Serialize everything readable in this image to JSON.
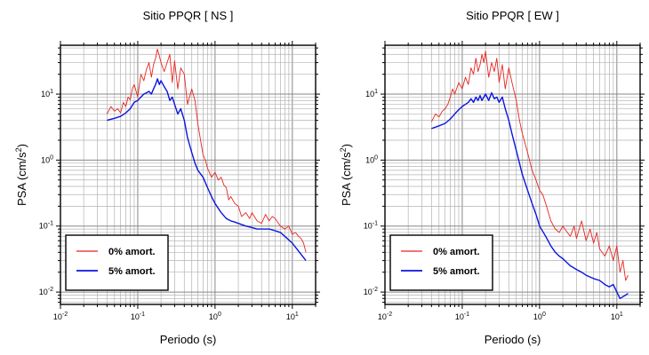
{
  "chart_data": [
    {
      "type": "line",
      "title": "Sitio PPQR [ NS ]",
      "xlabel": "Periodo (s)",
      "ylabel_main": "PSA (cm/s",
      "ylabel_sup": "2",
      "ylabel_end": ")",
      "xscale": "log",
      "yscale": "log",
      "xlim": [
        0.01,
        20
      ],
      "ylim": [
        0.0065,
        55
      ],
      "grid": true,
      "legend_position": "bottom-left",
      "x_ticks": [
        {
          "base": "10",
          "exp": "-2"
        },
        {
          "base": "10",
          "exp": "-1"
        },
        {
          "base": "10",
          "exp": "0"
        },
        {
          "base": "10",
          "exp": "1"
        }
      ],
      "y_ticks": [
        {
          "base": "10",
          "exp": "-2"
        },
        {
          "base": "10",
          "exp": "-1"
        },
        {
          "base": "10",
          "exp": "0"
        },
        {
          "base": "10",
          "exp": "1"
        }
      ],
      "series": [
        {
          "name": "0% amort.",
          "color": "#e8251f",
          "x": [
            0.04,
            0.045,
            0.05,
            0.055,
            0.06,
            0.065,
            0.07,
            0.075,
            0.08,
            0.085,
            0.09,
            0.1,
            0.11,
            0.12,
            0.13,
            0.14,
            0.15,
            0.16,
            0.17,
            0.18,
            0.19,
            0.2,
            0.22,
            0.24,
            0.26,
            0.28,
            0.3,
            0.33,
            0.36,
            0.4,
            0.44,
            0.5,
            0.55,
            0.6,
            0.65,
            0.7,
            0.75,
            0.8,
            0.9,
            1.0,
            1.1,
            1.2,
            1.3,
            1.4,
            1.5,
            1.6,
            1.8,
            2.0,
            2.2,
            2.5,
            2.8,
            3.0,
            3.5,
            4.0,
            4.5,
            5.0,
            5.5,
            6.0,
            7.0,
            8.0,
            9.0,
            10,
            11,
            12,
            13,
            14,
            15
          ],
          "y": [
            5,
            6.5,
            5.5,
            6,
            5.2,
            7.5,
            6.5,
            9,
            8.2,
            12,
            14,
            9,
            20,
            16,
            24,
            30,
            18,
            28,
            35,
            48,
            38,
            30,
            22,
            30,
            40,
            15,
            32,
            12,
            25,
            20,
            7,
            12,
            8,
            3.5,
            2,
            1.2,
            1.0,
            0.75,
            0.55,
            0.65,
            0.5,
            0.55,
            0.42,
            0.38,
            0.25,
            0.28,
            0.22,
            0.2,
            0.14,
            0.16,
            0.13,
            0.16,
            0.12,
            0.11,
            0.15,
            0.12,
            0.14,
            0.13,
            0.1,
            0.09,
            0.1,
            0.075,
            0.08,
            0.07,
            0.065,
            0.055,
            0.04
          ]
        },
        {
          "name": "5% amort.",
          "color": "#0a14e0",
          "x": [
            0.04,
            0.05,
            0.06,
            0.07,
            0.08,
            0.09,
            0.1,
            0.11,
            0.12,
            0.13,
            0.14,
            0.15,
            0.16,
            0.17,
            0.18,
            0.19,
            0.2,
            0.22,
            0.24,
            0.26,
            0.28,
            0.3,
            0.33,
            0.36,
            0.4,
            0.44,
            0.5,
            0.55,
            0.6,
            0.7,
            0.8,
            0.9,
            1.0,
            1.2,
            1.4,
            1.6,
            1.8,
            2.0,
            2.5,
            3.0,
            3.5,
            4.0,
            5.0,
            6.0,
            7.0,
            8.0,
            10,
            12,
            15
          ],
          "y": [
            4,
            4.3,
            4.6,
            5.2,
            6,
            7.5,
            8,
            9,
            10,
            10.5,
            11,
            10,
            12,
            14,
            17,
            14,
            16,
            13,
            11,
            8,
            9,
            7,
            5,
            6,
            4,
            2.2,
            1.3,
            0.9,
            0.7,
            0.55,
            0.38,
            0.28,
            0.22,
            0.16,
            0.13,
            0.12,
            0.115,
            0.11,
            0.1,
            0.095,
            0.09,
            0.09,
            0.09,
            0.085,
            0.08,
            0.07,
            0.055,
            0.042,
            0.03
          ]
        }
      ]
    },
    {
      "type": "line",
      "title": "Sitio PPQR [ EW ]",
      "xlabel": "Periodo (s)",
      "ylabel_main": "PSA (cm/s",
      "ylabel_sup": "2",
      "ylabel_end": ")",
      "xscale": "log",
      "yscale": "log",
      "xlim": [
        0.01,
        20
      ],
      "ylim": [
        0.0065,
        55
      ],
      "grid": true,
      "legend_position": "bottom-left",
      "x_ticks": [
        {
          "base": "10",
          "exp": "-2"
        },
        {
          "base": "10",
          "exp": "-1"
        },
        {
          "base": "10",
          "exp": "0"
        },
        {
          "base": "10",
          "exp": "1"
        }
      ],
      "y_ticks": [
        {
          "base": "10",
          "exp": "-2"
        },
        {
          "base": "10",
          "exp": "-1"
        },
        {
          "base": "10",
          "exp": "0"
        },
        {
          "base": "10",
          "exp": "1"
        }
      ],
      "series": [
        {
          "name": "0% amort.",
          "color": "#e8251f",
          "x": [
            0.04,
            0.045,
            0.05,
            0.055,
            0.06,
            0.065,
            0.07,
            0.075,
            0.08,
            0.09,
            0.1,
            0.11,
            0.12,
            0.13,
            0.14,
            0.15,
            0.16,
            0.17,
            0.18,
            0.19,
            0.2,
            0.22,
            0.24,
            0.26,
            0.28,
            0.3,
            0.33,
            0.36,
            0.4,
            0.44,
            0.5,
            0.55,
            0.6,
            0.7,
            0.8,
            0.9,
            1.0,
            1.1,
            1.2,
            1.4,
            1.6,
            1.8,
            2.0,
            2.2,
            2.5,
            2.8,
            3.0,
            3.5,
            4.0,
            4.5,
            5.0,
            5.5,
            6.0,
            7.0,
            8.0,
            9.0,
            10,
            11,
            12,
            13,
            14
          ],
          "y": [
            3.8,
            5,
            4.5,
            5.5,
            6,
            7,
            9,
            12,
            10,
            15,
            12,
            18,
            14,
            25,
            20,
            35,
            22,
            28,
            40,
            30,
            45,
            18,
            30,
            22,
            35,
            15,
            28,
            12,
            25,
            15,
            8,
            4,
            2.5,
            1.3,
            0.7,
            0.5,
            0.35,
            0.3,
            0.22,
            0.12,
            0.09,
            0.08,
            0.1,
            0.085,
            0.07,
            0.1,
            0.065,
            0.12,
            0.06,
            0.09,
            0.055,
            0.08,
            0.045,
            0.035,
            0.05,
            0.03,
            0.05,
            0.02,
            0.03,
            0.015,
            0.018
          ]
        },
        {
          "name": "5% amort.",
          "color": "#0a14e0",
          "x": [
            0.04,
            0.05,
            0.06,
            0.07,
            0.08,
            0.09,
            0.1,
            0.11,
            0.12,
            0.13,
            0.14,
            0.15,
            0.16,
            0.17,
            0.18,
            0.19,
            0.2,
            0.22,
            0.24,
            0.26,
            0.28,
            0.3,
            0.33,
            0.36,
            0.4,
            0.44,
            0.5,
            0.55,
            0.6,
            0.7,
            0.8,
            0.9,
            1.0,
            1.2,
            1.4,
            1.6,
            1.8,
            2.0,
            2.5,
            3.0,
            3.5,
            4.0,
            5.0,
            6.0,
            7.0,
            8.0,
            9.0,
            10,
            11,
            12,
            13,
            14
          ],
          "y": [
            3,
            3.3,
            3.6,
            4.2,
            5,
            5.8,
            6.5,
            7,
            7.5,
            8.5,
            7.5,
            9,
            8,
            9.5,
            8,
            9,
            10,
            8,
            10.5,
            8.5,
            9,
            7.5,
            9,
            6,
            4,
            2.5,
            1.4,
            0.9,
            0.6,
            0.35,
            0.22,
            0.15,
            0.1,
            0.07,
            0.05,
            0.04,
            0.035,
            0.032,
            0.025,
            0.022,
            0.02,
            0.018,
            0.016,
            0.015,
            0.013,
            0.012,
            0.013,
            0.01,
            0.008,
            0.0085,
            0.009,
            0.0095
          ]
        }
      ]
    }
  ]
}
